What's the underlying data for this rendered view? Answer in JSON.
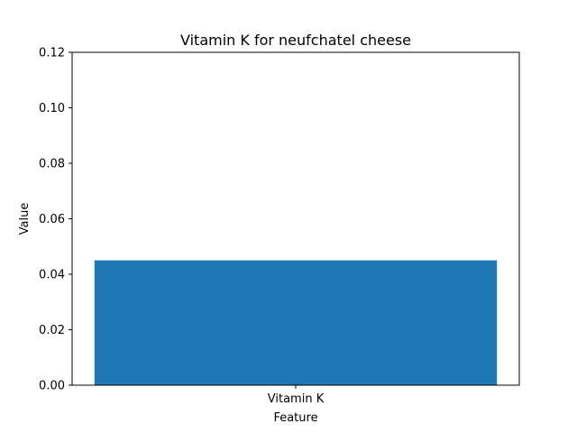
{
  "chart_data": {
    "type": "bar",
    "title": "Vitamin K for neufchatel cheese",
    "xlabel": "Feature",
    "ylabel": "Value",
    "categories": [
      "Vitamin K"
    ],
    "values": [
      0.045
    ],
    "ylim": [
      0,
      0.12
    ],
    "yticks": [
      "0.00",
      "0.02",
      "0.04",
      "0.06",
      "0.08",
      "0.10",
      "0.12"
    ],
    "grid": false,
    "bar_color": "#1f77b4"
  }
}
